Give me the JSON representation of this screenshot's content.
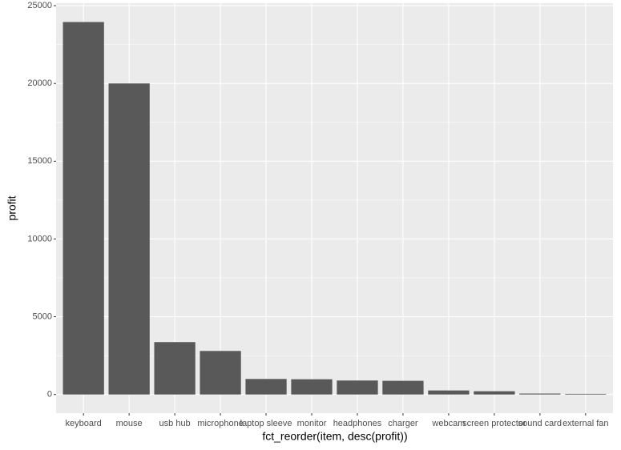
{
  "chart_data": {
    "type": "bar",
    "x_label": "fct_reorder(item, desc(profit))",
    "y_label": "profit",
    "categories": [
      "keyboard",
      "mouse",
      "usb hub",
      "microphone",
      "laptop sleeve",
      "monitor",
      "headphones",
      "charger",
      "webcam",
      "screen protector",
      "sound card",
      "external fan"
    ],
    "values": [
      23950,
      20000,
      3370,
      2800,
      1000,
      980,
      900,
      880,
      260,
      210,
      60,
      40
    ],
    "color": "#595959",
    "ylim": [
      -1200,
      25160
    ],
    "yticks": [
      0,
      5000,
      10000,
      15000,
      20000,
      25000
    ],
    "y_minor_ticks": [
      2500,
      7500,
      12500,
      17500,
      22500
    ],
    "grid": true
  }
}
